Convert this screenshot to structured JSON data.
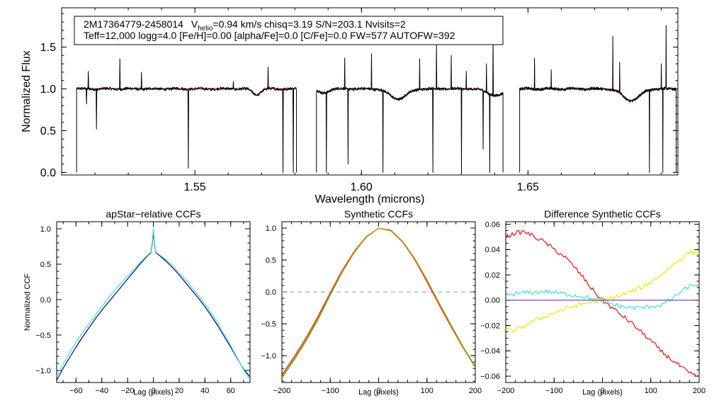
{
  "figure": {
    "title_id": "2M17364779-2458014",
    "header_line1_pre": "V",
    "header_line1_sub": "helio",
    "header_line1_post": "=0.94 km/s  chisq=3.19  S/N=203.1  Nvisits=2",
    "header_line2": "Teff=12,000 logg=4.0 [Fe/H]=0.00 [alpha/Fe]=0.0 [C/Fe]=0.0 FW=577 AUTOFW=392"
  },
  "colors": {
    "observed": "#000000",
    "model": "#e00000",
    "navy": "#000080",
    "cyan": "#40e0d0",
    "red": "#ee1111",
    "green": "#11bb11",
    "orange": "#e08800",
    "yellow": "#e8e800",
    "purple": "#6633cc",
    "dashed": "#999999"
  },
  "chart_data": [
    {
      "type": "line",
      "name": "spectrum",
      "xlabel": "Wavelength (microns)",
      "ylabel": "Normalized Flux",
      "xlim": [
        1.51,
        1.695
      ],
      "ylim": [
        -0.03,
        1.97
      ],
      "xticks": [
        1.55,
        1.6,
        1.65
      ],
      "xtick_labels": [
        "1.55",
        "1.60",
        "1.65"
      ],
      "yticks": [
        0.0,
        0.5,
        1.0,
        1.5
      ],
      "ytick_labels": [
        "0.0",
        "0.5",
        "1.0",
        "1.5"
      ],
      "chips": [
        [
          1.5145,
          1.5805
        ],
        [
          1.5865,
          1.6425
        ],
        [
          1.6475,
          1.6945
        ]
      ],
      "continuum": 1.0,
      "absorption_lines": [
        {
          "center": 1.5685,
          "depth": 0.07,
          "width": 0.0012
        },
        {
          "center": 1.5885,
          "depth": 0.05,
          "width": 0.0015
        },
        {
          "center": 1.611,
          "depth": 0.12,
          "width": 0.0025
        },
        {
          "center": 1.6405,
          "depth": 0.08,
          "width": 0.0025
        },
        {
          "center": 1.681,
          "depth": 0.14,
          "width": 0.0025
        }
      ],
      "emission_spikes": [
        {
          "x": 1.518,
          "y": 1.21
        },
        {
          "x": 1.5275,
          "y": 1.36
        },
        {
          "x": 1.534,
          "y": 1.2
        },
        {
          "x": 1.5615,
          "y": 1.09
        },
        {
          "x": 1.572,
          "y": 1.26
        },
        {
          "x": 1.595,
          "y": 1.37
        },
        {
          "x": 1.6175,
          "y": 1.36
        },
        {
          "x": 1.6225,
          "y": 1.55
        },
        {
          "x": 1.627,
          "y": 1.4
        },
        {
          "x": 1.6315,
          "y": 1.21
        },
        {
          "x": 1.6375,
          "y": 1.3
        },
        {
          "x": 1.6395,
          "y": 1.64
        },
        {
          "x": 1.652,
          "y": 1.37
        },
        {
          "x": 1.657,
          "y": 1.23
        },
        {
          "x": 1.6755,
          "y": 1.63
        },
        {
          "x": 1.6775,
          "y": 1.32
        },
        {
          "x": 1.69,
          "y": 1.3
        },
        {
          "x": 1.6915,
          "y": 1.76
        },
        {
          "x": 1.603,
          "y": 1.42
        }
      ],
      "drop_spikes": [
        {
          "x": 1.5175,
          "y": 0.82
        },
        {
          "x": 1.5205,
          "y": 0.52
        },
        {
          "x": 1.548,
          "y": 0.05
        },
        {
          "x": 1.5765,
          "y": 0.0
        },
        {
          "x": 1.5795,
          "y": 0.0
        },
        {
          "x": 1.5895,
          "y": 0.0
        },
        {
          "x": 1.596,
          "y": 0.1
        },
        {
          "x": 1.6065,
          "y": 0.0
        },
        {
          "x": 1.6215,
          "y": 0.0
        },
        {
          "x": 1.63,
          "y": 0.0
        },
        {
          "x": 1.6385,
          "y": 0.0
        },
        {
          "x": 1.6865,
          "y": 0.0
        },
        {
          "x": 1.6905,
          "y": 0.0
        },
        {
          "x": 1.6365,
          "y": 0.28
        }
      ]
    },
    {
      "type": "line",
      "name": "apstar-ccf",
      "title": "apStar−relative CCFs",
      "xlabel": "Lag (pixels)",
      "ylabel": "Normalized CCF",
      "xlim": [
        -75,
        75
      ],
      "ylim": [
        -1.17,
        1.1
      ],
      "xticks": [
        -60,
        -40,
        -20,
        0,
        20,
        40,
        60
      ],
      "xtick_labels": [
        "−60",
        "−40",
        "−20",
        "0",
        "20",
        "40",
        "60"
      ],
      "yticks": [
        -1.0,
        -0.5,
        0.0,
        0.5,
        1.0
      ],
      "ytick_labels": [
        "−1.0",
        "−0.5",
        "0.0",
        "0.5",
        "1.0"
      ],
      "series": [
        {
          "name": "visit 1",
          "color_key": "navy",
          "x": [
            -75,
            -70,
            -65,
            -60,
            -55,
            -50,
            -45,
            -40,
            -35,
            -30,
            -25,
            -20,
            -15,
            -10,
            -5,
            -2,
            -1,
            0,
            1,
            2,
            5,
            10,
            15,
            20,
            25,
            30,
            35,
            40,
            45,
            50,
            55,
            60,
            65,
            70,
            75
          ],
          "y": [
            -1.14,
            -0.97,
            -0.82,
            -0.67,
            -0.53,
            -0.4,
            -0.27,
            -0.15,
            -0.04,
            0.07,
            0.18,
            0.29,
            0.4,
            0.51,
            0.61,
            0.66,
            0.77,
            0.95,
            0.77,
            0.66,
            0.62,
            0.54,
            0.45,
            0.35,
            0.24,
            0.13,
            0.02,
            -0.1,
            -0.23,
            -0.37,
            -0.52,
            -0.67,
            -0.83,
            -0.98,
            -1.09
          ]
        },
        {
          "name": "visit 2",
          "color_key": "cyan",
          "x": [
            -75,
            -70,
            -65,
            -60,
            -55,
            -50,
            -45,
            -40,
            -35,
            -30,
            -25,
            -20,
            -15,
            -10,
            -5,
            -2,
            -1,
            0,
            1,
            2,
            5,
            10,
            15,
            20,
            25,
            30,
            35,
            40,
            45,
            50,
            55,
            60,
            65,
            70,
            75
          ],
          "y": [
            -1.08,
            -0.91,
            -0.75,
            -0.6,
            -0.47,
            -0.34,
            -0.22,
            -0.1,
            0.02,
            0.13,
            0.23,
            0.33,
            0.43,
            0.53,
            0.62,
            0.67,
            0.79,
            1.0,
            0.79,
            0.67,
            0.63,
            0.56,
            0.48,
            0.38,
            0.28,
            0.17,
            0.06,
            -0.06,
            -0.19,
            -0.33,
            -0.49,
            -0.65,
            -0.82,
            -0.99,
            -1.13
          ]
        }
      ]
    },
    {
      "type": "line",
      "name": "synthetic-ccf",
      "title": "Synthetic CCFs",
      "xlabel": "Lag (pixels)",
      "xlim": [
        -200,
        200
      ],
      "ylim": [
        -1.42,
        1.1
      ],
      "xticks": [
        -200,
        -100,
        0,
        100,
        200
      ],
      "xtick_labels": [
        "−200",
        "−100",
        "0",
        "100",
        "200"
      ],
      "yticks": [
        -1.0,
        -0.5,
        0.0,
        0.5,
        1.0
      ],
      "ytick_labels": [
        "−1.0",
        "−0.5",
        "0.0",
        "0.5",
        "1.0"
      ],
      "zero_line": 0.0,
      "series": [
        {
          "name": "model 1",
          "color_key": "red",
          "x": [
            -200,
            -175,
            -150,
            -125,
            -100,
            -75,
            -50,
            -25,
            0,
            25,
            50,
            75,
            100,
            125,
            150,
            175,
            200
          ],
          "y": [
            -1.3,
            -1.02,
            -0.72,
            -0.38,
            -0.01,
            0.34,
            0.64,
            0.87,
            0.996,
            0.96,
            0.78,
            0.5,
            0.16,
            -0.2,
            -0.55,
            -0.88,
            -1.18
          ]
        },
        {
          "name": "model 2",
          "color_key": "green",
          "x": [
            -200,
            -175,
            -150,
            -125,
            -100,
            -75,
            -50,
            -25,
            0,
            25,
            50,
            75,
            100,
            125,
            150,
            175,
            200
          ],
          "y": [
            -1.35,
            -1.07,
            -0.77,
            -0.43,
            -0.05,
            0.31,
            0.62,
            0.86,
            0.996,
            0.97,
            0.79,
            0.52,
            0.19,
            -0.17,
            -0.52,
            -0.86,
            -1.17
          ]
        },
        {
          "name": "model 3",
          "color_key": "orange",
          "x": [
            -200,
            -175,
            -150,
            -125,
            -100,
            -75,
            -50,
            -25,
            0,
            25,
            50,
            75,
            100,
            125,
            150,
            175,
            200
          ],
          "y": [
            -1.33,
            -1.05,
            -0.75,
            -0.41,
            -0.03,
            0.32,
            0.63,
            0.865,
            0.996,
            0.965,
            0.785,
            0.51,
            0.18,
            -0.18,
            -0.535,
            -0.87,
            -1.19
          ]
        }
      ]
    },
    {
      "type": "line",
      "name": "difference-ccf",
      "title": "Difference Synthetic CCFs",
      "xlabel": "Lag (pixels)",
      "xlim": [
        -200,
        200
      ],
      "ylim": [
        -0.065,
        0.062
      ],
      "xticks": [
        -200,
        -100,
        0,
        100,
        200
      ],
      "xtick_labels": [
        "−200",
        "−100",
        "0",
        "100",
        "200"
      ],
      "yticks": [
        -0.06,
        -0.04,
        -0.02,
        0.0,
        0.02,
        0.04,
        0.06
      ],
      "ytick_labels": [
        "−0.06",
        "−0.04",
        "−0.02",
        "0.00",
        "0.02",
        "0.04",
        "0.06"
      ],
      "series": [
        {
          "name": "diff 1",
          "color_key": "red",
          "x": [
            -200,
            -180,
            -160,
            -140,
            -120,
            -100,
            -80,
            -60,
            -40,
            -20,
            0,
            20,
            40,
            60,
            80,
            100,
            120,
            140,
            160,
            180,
            200
          ],
          "y": [
            0.05,
            0.053,
            0.054,
            0.05,
            0.046,
            0.04,
            0.035,
            0.027,
            0.018,
            0.008,
            0.0,
            -0.006,
            -0.012,
            -0.018,
            -0.025,
            -0.032,
            -0.04,
            -0.046,
            -0.052,
            -0.058,
            -0.06
          ]
        },
        {
          "name": "diff 2",
          "color_key": "cyan",
          "x": [
            -200,
            -180,
            -160,
            -140,
            -120,
            -100,
            -80,
            -60,
            -40,
            -20,
            0,
            20,
            40,
            60,
            80,
            100,
            120,
            140,
            160,
            180,
            200
          ],
          "y": [
            0.004,
            0.005,
            0.006,
            0.006,
            0.007,
            0.006,
            0.005,
            0.004,
            0.003,
            0.001,
            0.0,
            -0.003,
            -0.005,
            -0.006,
            -0.006,
            -0.005,
            -0.004,
            0.0,
            0.006,
            0.011,
            0.013
          ]
        },
        {
          "name": "diff 3",
          "color_key": "yellow",
          "x": [
            -200,
            -180,
            -160,
            -140,
            -120,
            -100,
            -80,
            -60,
            -40,
            -20,
            0,
            20,
            40,
            60,
            80,
            100,
            120,
            140,
            160,
            180,
            200
          ],
          "y": [
            -0.024,
            -0.024,
            -0.02,
            -0.016,
            -0.013,
            -0.01,
            -0.007,
            -0.005,
            -0.003,
            -0.001,
            0.0,
            0.002,
            0.004,
            0.007,
            0.01,
            0.014,
            0.02,
            0.026,
            0.032,
            0.038,
            0.037
          ]
        },
        {
          "name": "diff 4",
          "color_key": "purple",
          "x": [
            -200,
            200
          ],
          "y": [
            0.0,
            0.0
          ]
        }
      ]
    }
  ]
}
